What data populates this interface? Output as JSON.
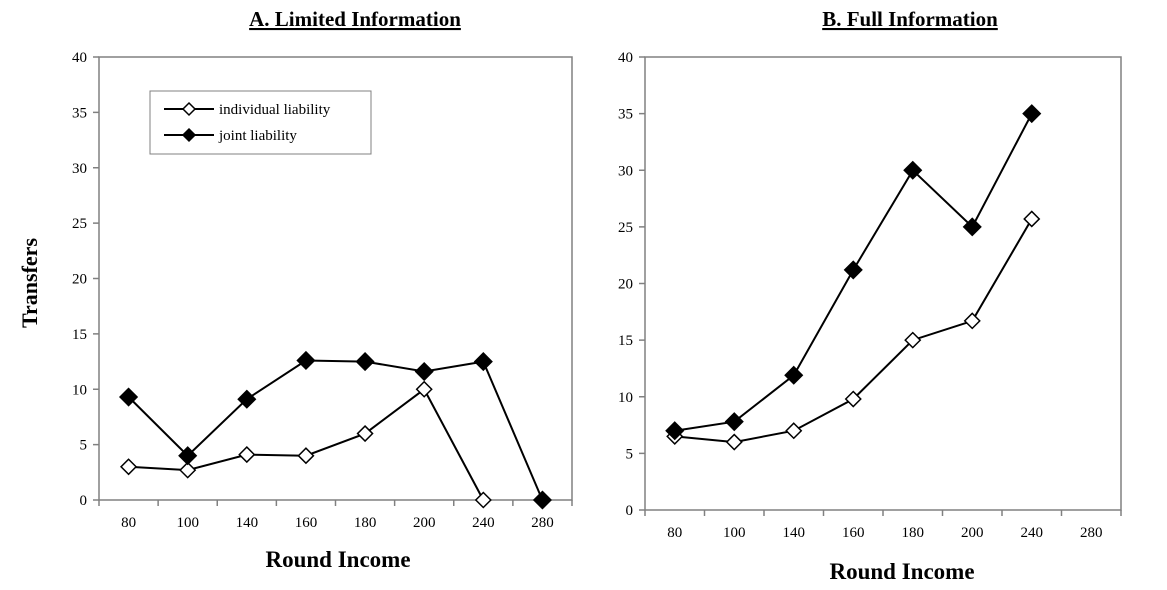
{
  "ylabel": "Transfers",
  "chart_data": [
    {
      "type": "line",
      "title": "A. Limited Information",
      "xlabel": "Round Income",
      "ylabel": "Transfers",
      "categories": [
        "80",
        "100",
        "140",
        "160",
        "180",
        "200",
        "240",
        "280"
      ],
      "ylim": [
        0,
        40
      ],
      "yticks": [
        0,
        5,
        10,
        15,
        20,
        25,
        30,
        35,
        40
      ],
      "grid": false,
      "legend": "top-left",
      "series": [
        {
          "name": "individual liability",
          "marker": "open-diamond",
          "color": "#000000",
          "values": [
            3.0,
            2.7,
            4.1,
            4.0,
            6.0,
            10.0,
            0.0,
            null
          ]
        },
        {
          "name": "joint liability",
          "marker": "filled-diamond",
          "color": "#000000",
          "values": [
            9.3,
            4.0,
            9.1,
            12.6,
            12.5,
            11.6,
            12.5,
            0.0
          ]
        }
      ]
    },
    {
      "type": "line",
      "title": "B. Full Information",
      "xlabel": "Round Income",
      "ylabel": "",
      "categories": [
        "80",
        "100",
        "140",
        "160",
        "180",
        "200",
        "240",
        "280"
      ],
      "ylim": [
        0,
        40
      ],
      "yticks": [
        0,
        5,
        10,
        15,
        20,
        25,
        30,
        35,
        40
      ],
      "grid": false,
      "legend": "",
      "series": [
        {
          "name": "individual liability",
          "marker": "open-diamond",
          "color": "#000000",
          "values": [
            6.5,
            6.0,
            7.0,
            9.8,
            15.0,
            16.7,
            25.7,
            null
          ]
        },
        {
          "name": "joint liability",
          "marker": "filled-diamond",
          "color": "#000000",
          "values": [
            7.0,
            7.8,
            11.9,
            21.2,
            30.0,
            25.0,
            35.0,
            null
          ]
        }
      ]
    }
  ]
}
